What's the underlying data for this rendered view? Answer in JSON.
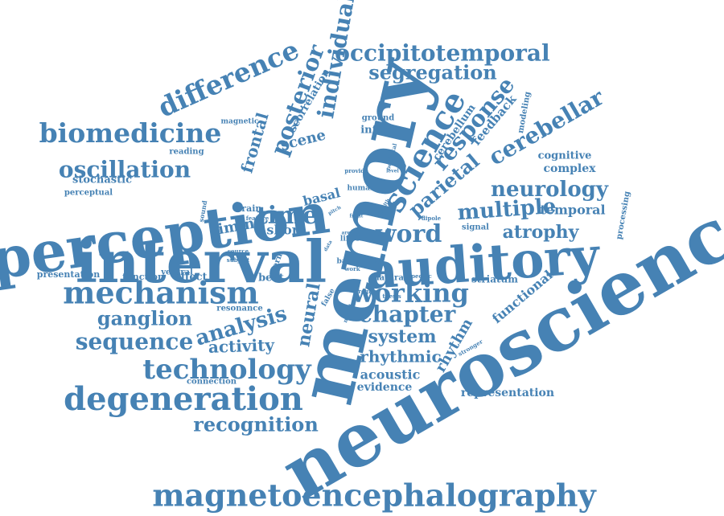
{
  "color": "#4682B4",
  "words": [
    {
      "text": "neuroscience",
      "weight": 100
    },
    {
      "text": "memory",
      "weight": 95
    },
    {
      "text": "interval",
      "weight": 85
    },
    {
      "text": "perception",
      "weight": 84
    },
    {
      "text": "auditory",
      "weight": 76
    },
    {
      "text": "magnetoencephalography",
      "weight": 55
    },
    {
      "text": "mechanism",
      "weight": 48
    },
    {
      "text": "degeneration",
      "weight": 48
    },
    {
      "text": "science",
      "weight": 45
    },
    {
      "text": "biomedicine",
      "weight": 42
    },
    {
      "text": "difference",
      "weight": 42
    },
    {
      "text": "technology",
      "weight": 40
    },
    {
      "text": "occipitotemporal",
      "weight": 36
    },
    {
      "text": "working",
      "weight": 38
    },
    {
      "text": "oscillation",
      "weight": 36
    },
    {
      "text": "individual",
      "weight": 34
    },
    {
      "text": "time",
      "weight": 36
    },
    {
      "text": "word",
      "weight": 36
    },
    {
      "text": "posterior",
      "weight": 34
    },
    {
      "text": "cerebellar",
      "weight": 34
    },
    {
      "text": "response",
      "weight": 32
    },
    {
      "text": "sequence",
      "weight": 34
    },
    {
      "text": "chapter",
      "weight": 34
    },
    {
      "text": "segregation",
      "weight": 30
    },
    {
      "text": "neurology",
      "weight": 32
    },
    {
      "text": "multiple",
      "weight": 32
    },
    {
      "text": "recognition",
      "weight": 30
    },
    {
      "text": "ganglion",
      "weight": 30
    },
    {
      "text": "analysis",
      "weight": 30
    },
    {
      "text": "parietal",
      "weight": 30
    },
    {
      "text": "neural",
      "weight": 30
    },
    {
      "text": "atrophy",
      "weight": 28
    },
    {
      "text": "system",
      "weight": 28
    },
    {
      "text": "activity",
      "weight": 26
    },
    {
      "text": "rhythmic",
      "weight": 24
    },
    {
      "text": "frontal",
      "weight": 24
    },
    {
      "text": "scene",
      "weight": 24
    },
    {
      "text": "timing",
      "weight": 24
    },
    {
      "text": "short",
      "weight": 22
    },
    {
      "text": "rhythm",
      "weight": 22
    },
    {
      "text": "acoustic",
      "weight": 20
    },
    {
      "text": "basal",
      "weight": 20
    },
    {
      "text": "functional",
      "weight": 20
    },
    {
      "text": "temporal",
      "weight": 20
    },
    {
      "text": "feedback",
      "weight": 18
    },
    {
      "text": "cerebellum",
      "weight": 18
    },
    {
      "text": "evidence",
      "weight": 18
    },
    {
      "text": "representation",
      "weight": 18
    },
    {
      "text": "stochastic",
      "weight": 16
    },
    {
      "text": "complex",
      "weight": 16
    },
    {
      "text": "cognitive",
      "weight": 16
    },
    {
      "text": "scorrelation",
      "weight": 16
    },
    {
      "text": "inferior",
      "weight": 16
    },
    {
      "text": "presentation",
      "weight": 14
    },
    {
      "text": "effect",
      "weight": 16
    },
    {
      "text": "beat",
      "weight": 16
    },
    {
      "text": "striatum",
      "weight": 14
    },
    {
      "text": "brain",
      "weight": 14
    },
    {
      "text": "function",
      "weight": 14
    },
    {
      "text": "ventral",
      "weight": 12
    },
    {
      "text": "ground",
      "weight": 12
    },
    {
      "text": "modeling",
      "weight": 12
    },
    {
      "text": "processing",
      "weight": 12
    },
    {
      "text": "reading",
      "weight": 11
    },
    {
      "text": "perceptual",
      "weight": 11
    },
    {
      "text": "magnetic",
      "weight": 10
    },
    {
      "text": "natural",
      "weight": 12
    },
    {
      "text": "resonance",
      "weight": 11
    },
    {
      "text": "connection",
      "weight": 11
    },
    {
      "text": "stimulus",
      "weight": 11
    },
    {
      "text": "signal",
      "weight": 11
    },
    {
      "text": "dipole",
      "weight": 9
    },
    {
      "text": "specific",
      "weight": 9
    },
    {
      "text": "thesis",
      "weight": 9
    },
    {
      "text": "human",
      "weight": 11
    },
    {
      "text": "sound",
      "weight": 10
    },
    {
      "text": "feature",
      "weight": 9
    },
    {
      "text": "source",
      "weight": 9
    },
    {
      "text": "subject",
      "weight": 9
    },
    {
      "text": "term",
      "weight": 11
    },
    {
      "text": "life font",
      "weight": 10
    },
    {
      "text": "base",
      "weight": 10
    },
    {
      "text": "work",
      "weight": 9
    },
    {
      "text": "false",
      "weight": 9
    },
    {
      "text": "region",
      "weight": 9
    },
    {
      "text": "model",
      "weight": 9
    },
    {
      "text": "occipital",
      "weight": 9
    },
    {
      "text": "stronger",
      "weight": 9
    },
    {
      "text": "provide",
      "weight": 9
    },
    {
      "text": "area",
      "weight": 8
    },
    {
      "text": "front",
      "weight": 8
    },
    {
      "text": "novel",
      "weight": 8
    },
    {
      "text": "pitch",
      "weight": 7
    },
    {
      "text": "health",
      "weight": 7
    },
    {
      "text": "data",
      "weight": 7
    },
    {
      "text": "level",
      "weight": 6
    },
    {
      "text": "fix",
      "weight": 6
    }
  ]
}
